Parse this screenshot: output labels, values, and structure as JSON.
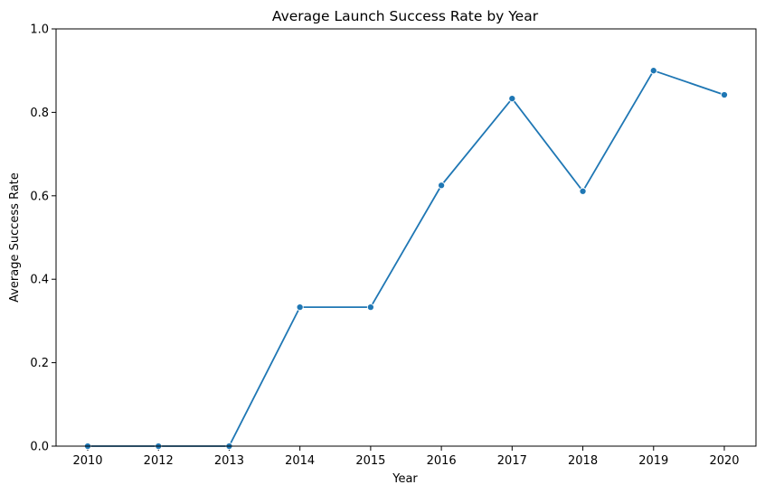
{
  "chart_data": {
    "type": "line",
    "title": "Average Launch Success Rate by Year",
    "xlabel": "Year",
    "ylabel": "Average Success Rate",
    "categories": [
      "2010",
      "2012",
      "2013",
      "2014",
      "2015",
      "2016",
      "2017",
      "2018",
      "2019",
      "2020"
    ],
    "series": [
      {
        "values": [
          0.0,
          0.0,
          0.0,
          0.333,
          0.333,
          0.625,
          0.833,
          0.611,
          0.9,
          0.842
        ],
        "color": "#1f77b4"
      }
    ],
    "ylim": [
      0,
      1
    ],
    "yticks": [
      0.0,
      0.2,
      0.4,
      0.6,
      0.8,
      1.0
    ],
    "ytick_labels": [
      "0.0",
      "0.2",
      "0.4",
      "0.6",
      "0.8",
      "1.0"
    ],
    "grid": false,
    "marker": "circle"
  }
}
